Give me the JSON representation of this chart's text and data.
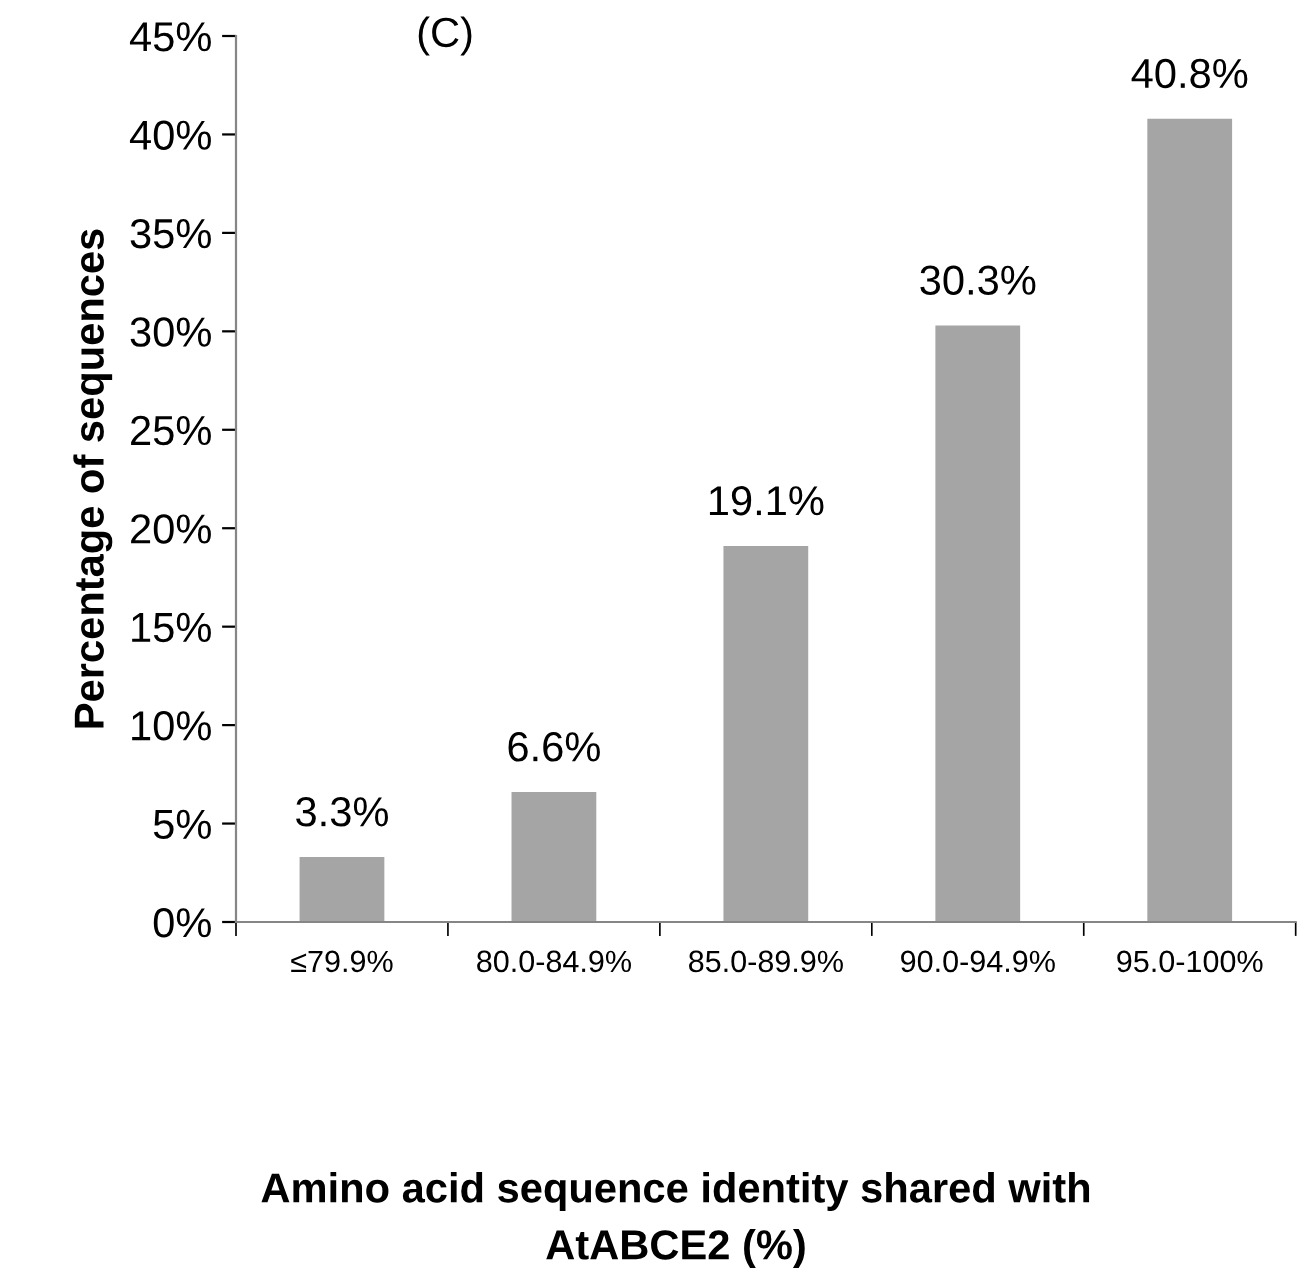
{
  "chart_data": {
    "type": "bar",
    "categories": [
      "≤79.9%",
      "80.0-84.9%",
      "85.0-89.9%",
      "90.0-94.9%",
      "95.0-100%"
    ],
    "values": [
      3.3,
      6.6,
      19.1,
      30.3,
      40.8
    ],
    "value_labels": [
      "3.3%",
      "6.6%",
      "19.1%",
      "30.3%",
      "40.8%"
    ],
    "color": "#a5a5a5",
    "xlabel": "Amino acid sequence identity shared with\nAtABCE2 (%)",
    "ylabel": "Percentage of sequences",
    "annotations": [
      "(C)"
    ],
    "ylim": [
      0,
      45
    ],
    "yticks": [
      {
        "value": 0,
        "label": "0%"
      },
      {
        "value": 5,
        "label": "5%"
      },
      {
        "value": 10,
        "label": "10%"
      },
      {
        "value": 15,
        "label": "15%"
      },
      {
        "value": 20,
        "label": "20%"
      },
      {
        "value": 25,
        "label": "25%"
      },
      {
        "value": 30,
        "label": "30%"
      },
      {
        "value": 35,
        "label": "35%"
      },
      {
        "value": 40,
        "label": "40%"
      },
      {
        "value": 45,
        "label": "45%"
      }
    ],
    "grid": false,
    "legend": false
  }
}
